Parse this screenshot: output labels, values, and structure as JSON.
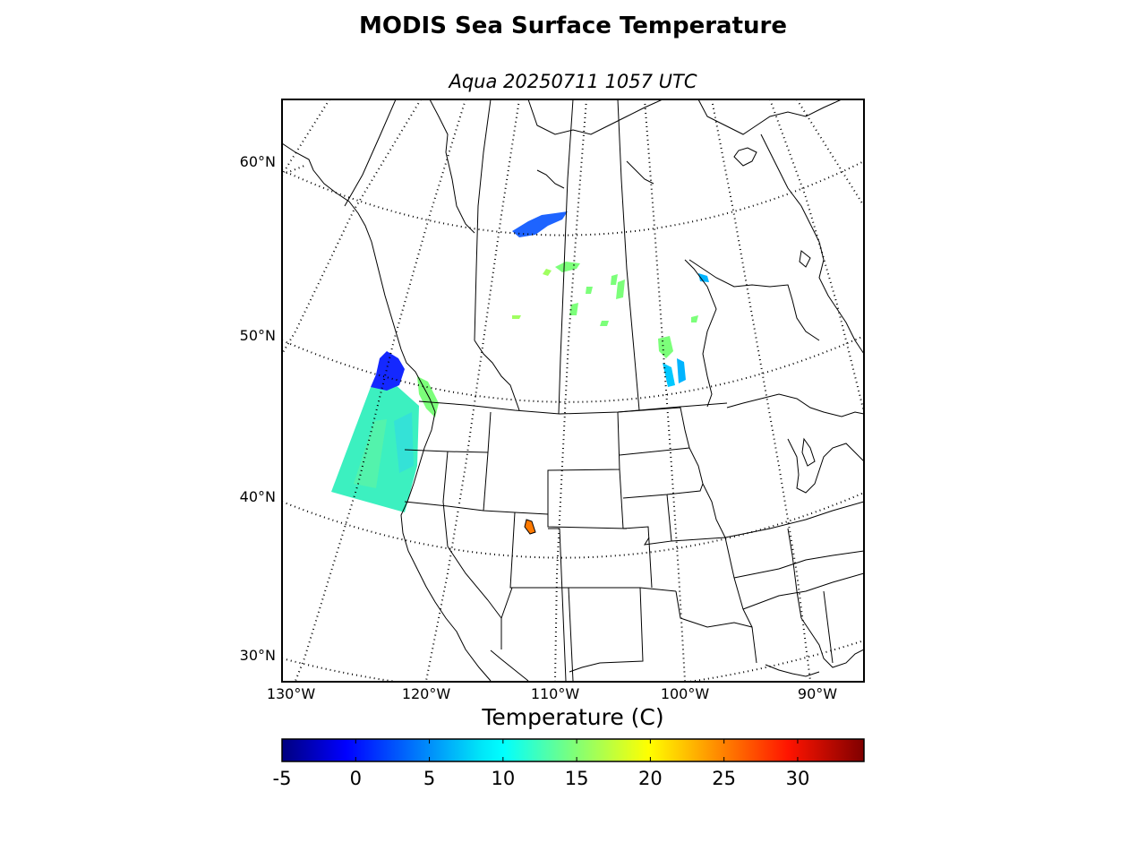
{
  "title": "MODIS Sea Surface Temperature",
  "subtitle": "Aqua 20250711 1057 UTC",
  "lat_labels": [
    {
      "label": "60°N",
      "value": 60
    },
    {
      "label": "50°N",
      "value": 50
    },
    {
      "label": "40°N",
      "value": 40
    },
    {
      "label": "30°N",
      "value": 30
    }
  ],
  "lon_labels": [
    {
      "label": "130°W",
      "value": -130
    },
    {
      "label": "120°W",
      "value": -120
    },
    {
      "label": "110°W",
      "value": -110
    },
    {
      "label": "100°W",
      "value": -100
    },
    {
      "label": "90°W",
      "value": -90
    }
  ],
  "colorbar": {
    "title": "Temperature (C)",
    "min": -5,
    "max": 34.5,
    "ticks": [
      "-5",
      "0",
      "5",
      "10",
      "15",
      "20",
      "25",
      "30"
    ],
    "colormap": "jet"
  },
  "colors": {
    "ocean_swath": "#3cf0c0",
    "coast_blue": "#1428ff",
    "lake_green": "#7cff7a",
    "lake_cyan": "#00b4ff",
    "lake_orange": "#ff7a00"
  }
}
